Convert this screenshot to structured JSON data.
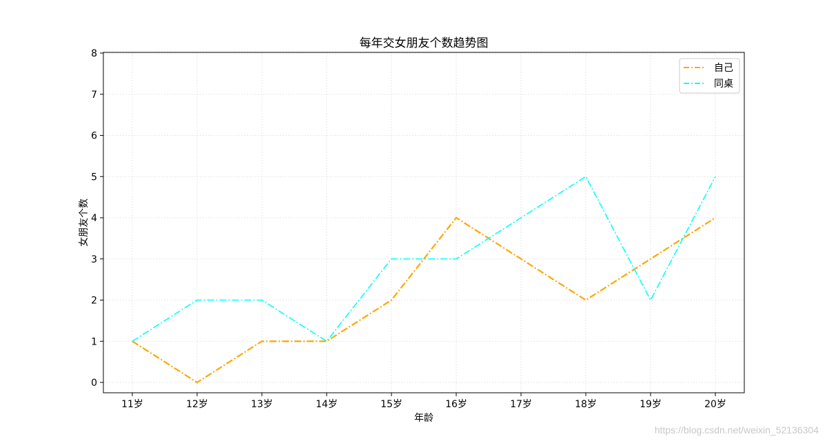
{
  "chart_data": {
    "type": "line",
    "title": "每年交女朋友个数趋势图",
    "xlabel": "年龄",
    "ylabel": "女朋友个数",
    "categories": [
      "11岁",
      "12岁",
      "13岁",
      "14岁",
      "15岁",
      "16岁",
      "17岁",
      "18岁",
      "19岁",
      "20岁"
    ],
    "ylim": [
      0,
      8
    ],
    "yticks": [
      "0",
      "1",
      "2",
      "3",
      "4",
      "5",
      "6",
      "7",
      "8"
    ],
    "grid": true,
    "legend_position": "top-right",
    "series": [
      {
        "name": "自己",
        "color": "#ffa500",
        "line_style": "dash-dot",
        "values": [
          1,
          0,
          1,
          1,
          2,
          4,
          3,
          2,
          3,
          4
        ]
      },
      {
        "name": "同桌",
        "color": "#00ffff",
        "line_style": "dash-dot",
        "values": [
          1,
          2,
          2,
          1,
          3,
          3,
          4,
          5,
          2,
          5
        ]
      }
    ]
  },
  "watermark": "https://blog.csdn.net/weixin_52136304"
}
